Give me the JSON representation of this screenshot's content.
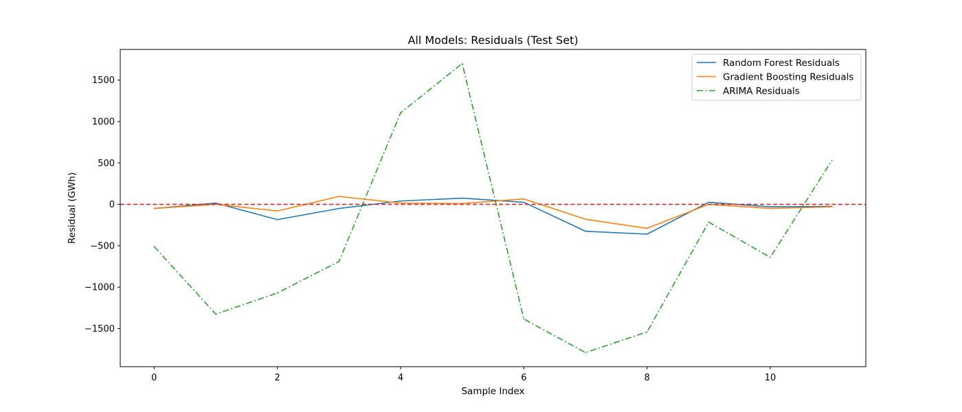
{
  "chart_data": {
    "type": "line",
    "title": "All Models: Residuals (Test Set)",
    "xlabel": "Sample Index",
    "ylabel": "Residual (GWh)",
    "xlim": [
      -0.55,
      11.55
    ],
    "ylim": [
      -1960,
      1870
    ],
    "xticks": [
      0,
      2,
      4,
      6,
      8,
      10
    ],
    "yticks": [
      -1500,
      -1000,
      -500,
      0,
      500,
      1000,
      1500
    ],
    "ytick_labels": [
      "−1500",
      "−1000",
      "−500",
      "0",
      "500",
      "1000",
      "1500"
    ],
    "grid": false,
    "legend_position": "top-right",
    "x": [
      0,
      1,
      2,
      3,
      4,
      5,
      6,
      7,
      8,
      9,
      10,
      11
    ],
    "series": [
      {
        "name": "Random Forest Residuals",
        "color": "#1f77b4",
        "style": "solid",
        "values": [
          -50,
          15,
          -185,
          -50,
          40,
          75,
          25,
          -325,
          -360,
          25,
          -30,
          -25
        ]
      },
      {
        "name": "Gradient Boosting Residuals",
        "color": "#ff7f0e",
        "style": "solid",
        "values": [
          -50,
          0,
          -80,
          95,
          15,
          10,
          65,
          -180,
          -290,
          0,
          -50,
          -30
        ]
      },
      {
        "name": "ARIMA Residuals",
        "color": "#2ca02c",
        "style": "dashdot",
        "values": [
          -510,
          -1325,
          -1070,
          -690,
          1105,
          1700,
          -1385,
          -1790,
          -1540,
          -215,
          -640,
          530
        ]
      }
    ],
    "reference_line": {
      "y": 0,
      "color": "#d62728",
      "style": "dashed"
    }
  }
}
